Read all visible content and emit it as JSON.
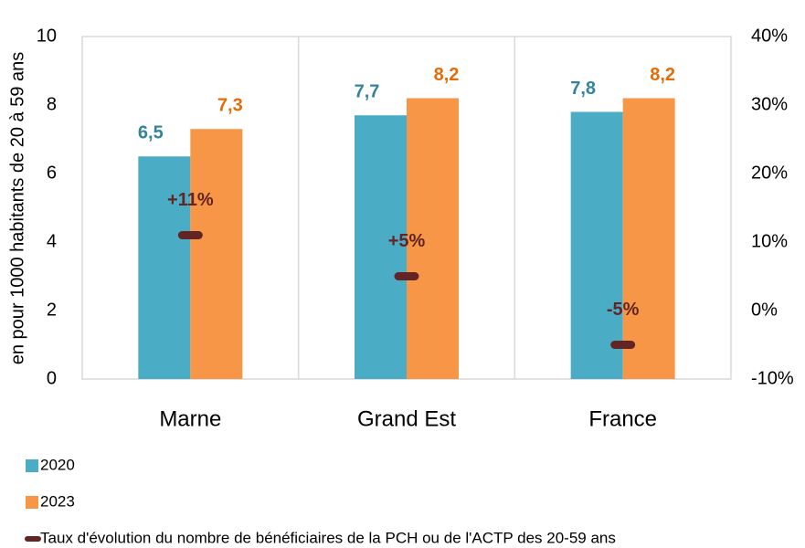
{
  "chart_data": {
    "type": "bar",
    "y_label": "en pour 1000 habitants de 20 à 59 ans",
    "categories": [
      "Marne",
      "Grand Est",
      "France"
    ],
    "series": [
      {
        "name": "2020",
        "color": "#4bacc6",
        "label_color": "#31849b",
        "values": [
          6.5,
          7.7,
          7.8
        ],
        "value_labels": [
          "6,5",
          "7,7",
          "7,8"
        ]
      },
      {
        "name": "2023",
        "color": "#f79646",
        "label_color": "#e36c09",
        "values": [
          7.3,
          8.2,
          8.2
        ],
        "value_labels": [
          "7,3",
          "8,2",
          "8,2"
        ]
      },
      {
        "name": "Taux d'évolution du nombre de bénéficiaires de la PCH ou de l'ACTP des 20-59 ans",
        "type": "marker",
        "axis": "y2",
        "color": "#632523",
        "values": [
          11,
          5,
          -5
        ],
        "value_labels": [
          "+11%",
          "+5%",
          "-5%"
        ]
      }
    ],
    "ylim": [
      0,
      10
    ],
    "yticks": [
      0,
      2,
      4,
      6,
      8,
      10
    ],
    "y2lim": [
      -10,
      40
    ],
    "y2ticks": [
      {
        "value": -10,
        "label": "-10%"
      },
      {
        "value": 0,
        "label": "0%"
      },
      {
        "value": 10,
        "label": "10%"
      },
      {
        "value": 20,
        "label": "20%"
      },
      {
        "value": 30,
        "label": "30%"
      },
      {
        "value": 40,
        "label": "40%"
      }
    ],
    "legend": "bottom-left"
  }
}
